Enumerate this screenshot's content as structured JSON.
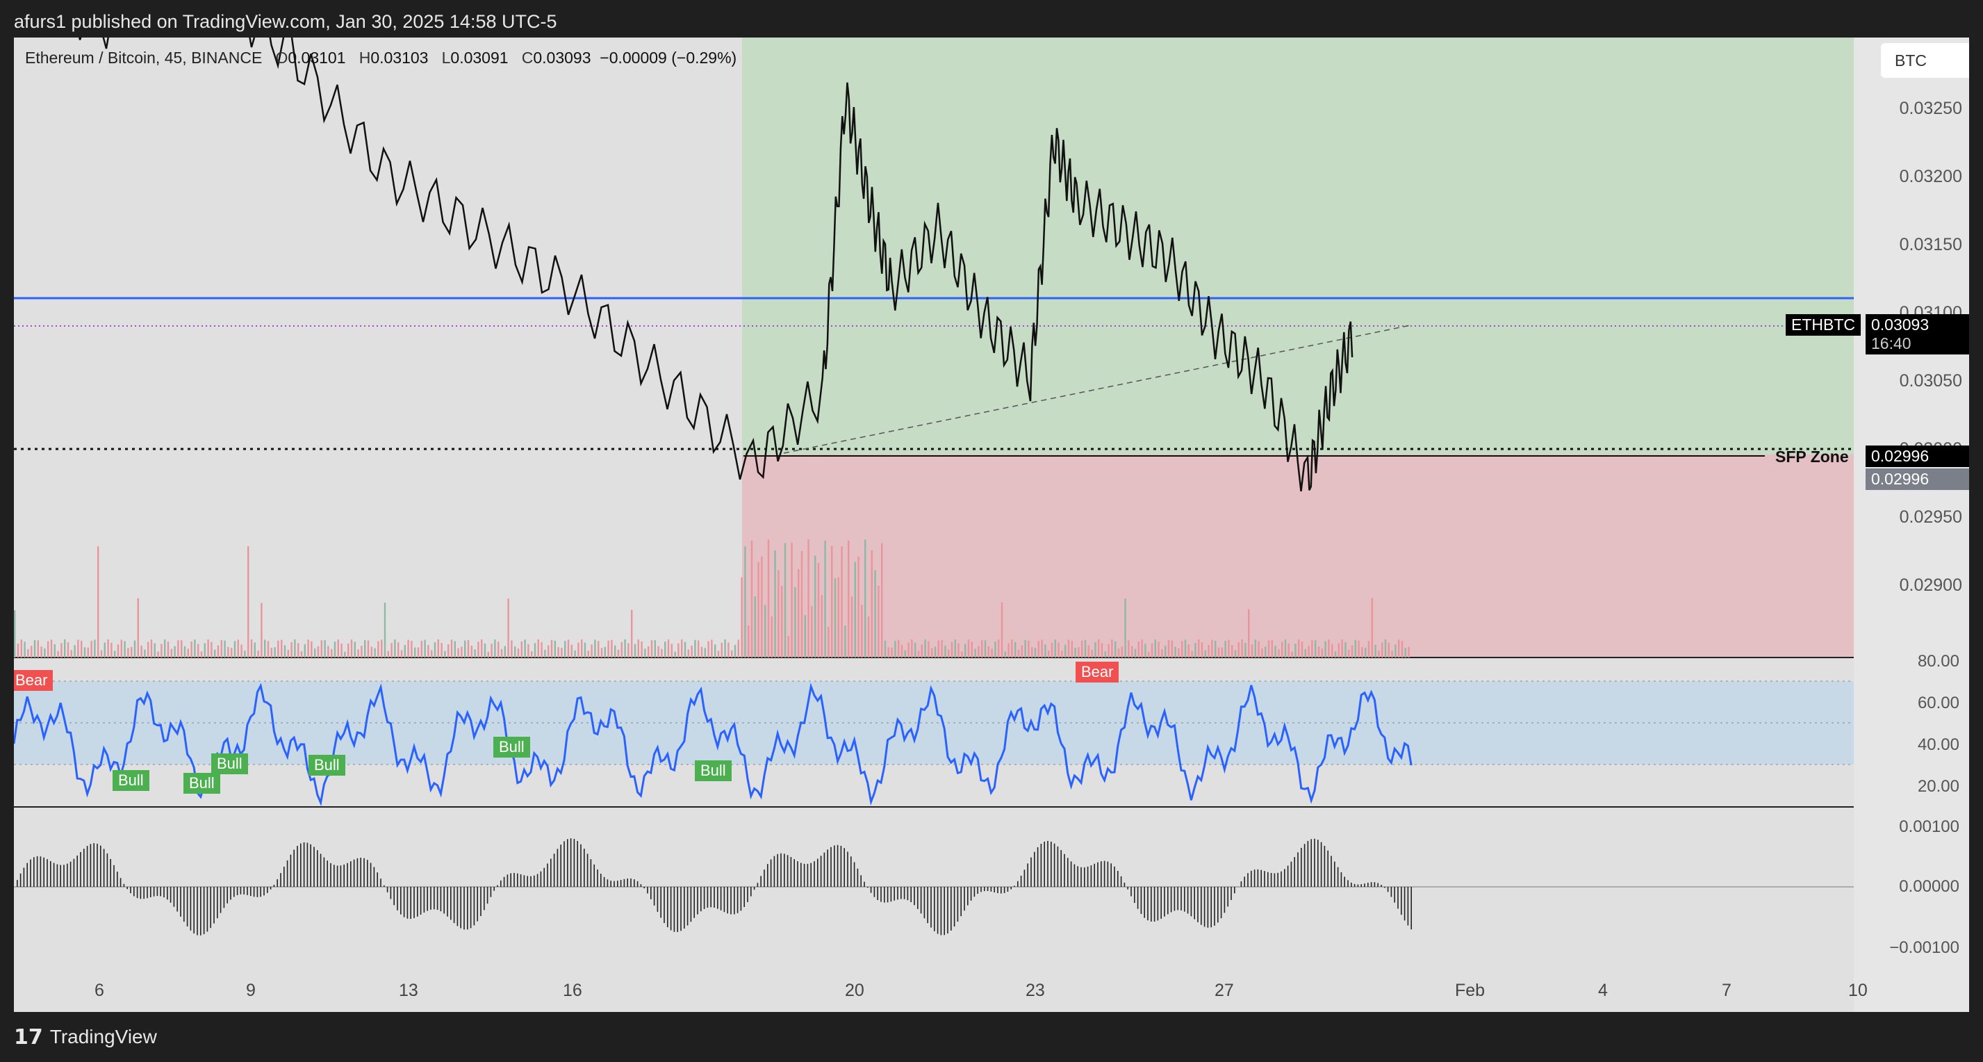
{
  "header": {
    "publisher": "afurs1 published on TradingView.com, Jan 30, 2025 14:58 UTC-5"
  },
  "legend": {
    "symbol": "Ethereum / Bitcoin, 45, BINANCE",
    "o_label": "O",
    "o_value": "0.03101",
    "h_label": "H",
    "h_value": "0.03103",
    "l_label": "L",
    "l_value": "0.03091",
    "c_label": "C",
    "c_value": "0.03093",
    "change": "−0.00009 (−0.29%)"
  },
  "currency_button": "BTC",
  "price_axis": {
    "ticks": [
      "0.03250",
      "0.03200",
      "0.03150",
      "0.03100",
      "0.03050",
      "0.03000",
      "0.02950",
      "0.02900"
    ]
  },
  "tags": {
    "symbol": "ETHBTC",
    "last_price": "0.03093",
    "countdown": "16:40",
    "sfp_price": "0.02996",
    "sfp_price_alt": "0.02996",
    "sfp_label": "SFP Zone"
  },
  "rsi": {
    "ticks": [
      "80.00",
      "60.00",
      "40.00",
      "20.00"
    ],
    "bear_labels": [
      "Bear",
      "Bear"
    ],
    "bull_labels": [
      "Bull",
      "Bull",
      "Bull",
      "Bull",
      "Bull",
      "Bull"
    ]
  },
  "osc": {
    "ticks": [
      "0.00100",
      "0.00000",
      "−0.00100"
    ]
  },
  "time_axis": {
    "ticks": [
      "6",
      "9",
      "13",
      "16",
      "20",
      "23",
      "27",
      "Feb",
      "4",
      "7",
      "10"
    ]
  },
  "footer": {
    "brand": "TradingView"
  },
  "colors": {
    "green_zone": "#b9d8b5",
    "red_zone": "#e6bcc2",
    "blue_line": "#2962ff",
    "rsi_line": "#2962ff",
    "rsi_band": "#c4d6e6",
    "bull": "#4caf50",
    "bear": "#f05050"
  },
  "chart_data": {
    "type": "candlestick",
    "title": "Ethereum / Bitcoin, 45, BINANCE",
    "ylim": [
      0.0287,
      0.0329
    ],
    "price_x": [
      1,
      3,
      5,
      7,
      9,
      11,
      13,
      15,
      17,
      18.5,
      19,
      19.5,
      20,
      21,
      22,
      23,
      23.5,
      24,
      25,
      26,
      27,
      28,
      29,
      29.5,
      30
    ],
    "price_y": [
      0.0332,
      0.033,
      0.0333,
      0.0328,
      0.032,
      0.0316,
      0.0312,
      0.0306,
      0.03,
      0.0305,
      0.0325,
      0.0318,
      0.0312,
      0.0316,
      0.031,
      0.0306,
      0.0322,
      0.0318,
      0.0316,
      0.0314,
      0.0309,
      0.0306,
      0.0299,
      0.0305,
      0.0309
    ]
  }
}
